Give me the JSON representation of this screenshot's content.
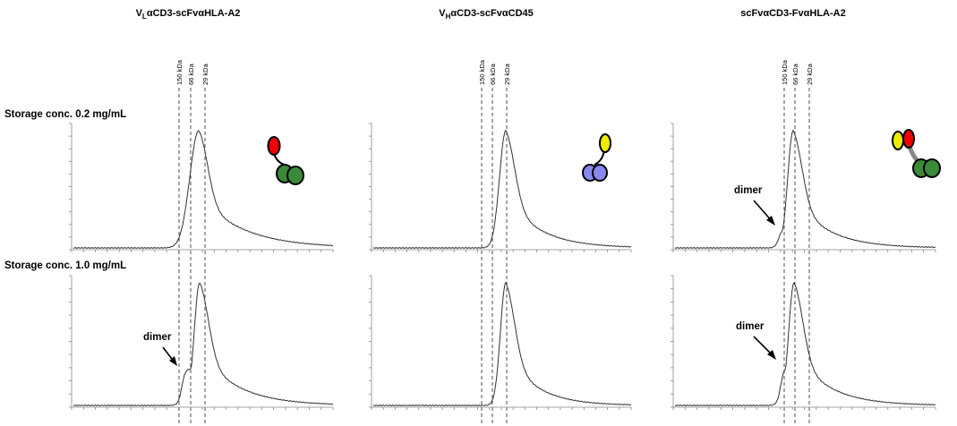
{
  "columns": [
    {
      "title": {
        "main": "V",
        "sub": "L",
        "rest": "αCD3-scFvαHLA-A2"
      }
    },
    {
      "title": {
        "main": "V",
        "sub": "H",
        "rest": "αCD3-scFvαCD45"
      }
    },
    {
      "title": {
        "main": "scFvαCD3-FvαHLA-A2"
      }
    }
  ],
  "markers": [
    "150 kDa",
    "66 kDa",
    "29 kDa"
  ],
  "rows": [
    "Storage conc. 0.2 mg/mL",
    "Storage conc. 1.0 mg/mL"
  ],
  "annotations": [
    "dimer",
    "dimer",
    "dimer"
  ]
}
